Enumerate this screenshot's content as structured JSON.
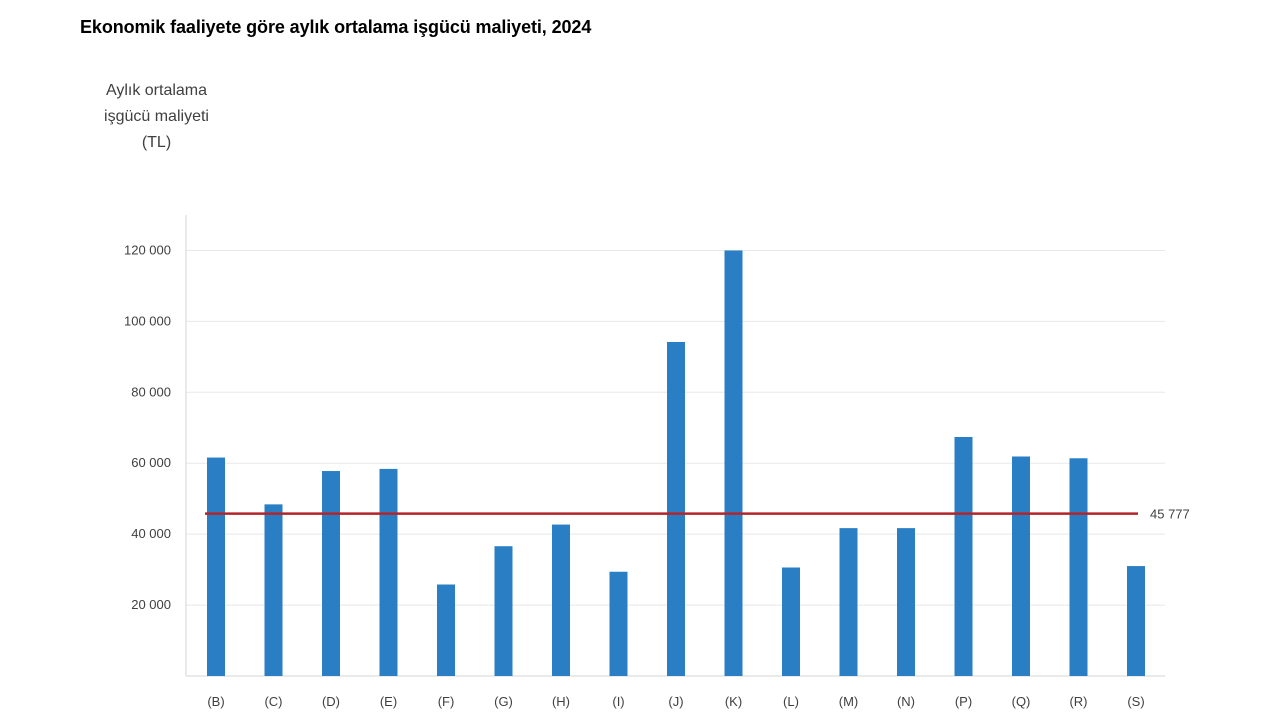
{
  "chart_data": {
    "type": "bar",
    "title": "Ekonomik faaliyete göre aylık ortalama işgücü maliyeti, 2024",
    "ylabel_lines": [
      "Aylık ortalama",
      "işgücü maliyeti",
      "(TL)"
    ],
    "xlabel": "",
    "categories": [
      "(B)",
      "(C)",
      "(D)",
      "(E)",
      "(F)",
      "(G)",
      "(H)",
      "(I)",
      "(J)",
      "(K)",
      "(L)",
      "(M)",
      "(N)",
      "(P)",
      "(Q)",
      "(R)",
      "(S)"
    ],
    "values": [
      61600,
      48400,
      57800,
      58400,
      25800,
      36600,
      42700,
      29400,
      94200,
      120000,
      30600,
      41700,
      41700,
      67400,
      61900,
      61400,
      31000
    ],
    "yticks": [
      20000,
      40000,
      60000,
      80000,
      100000,
      120000
    ],
    "ytick_labels": [
      "20 000",
      "40 000",
      "60 000",
      "80 000",
      "100 000",
      "120 000"
    ],
    "ylim": [
      0,
      130000
    ],
    "grid": true,
    "reference_line": {
      "value": 45777,
      "label": "45 777"
    },
    "colors": {
      "bar": "#2a7fc4",
      "reference_line": "#b3242a",
      "grid": "#e8e8e8",
      "axis": "#d4d4d4"
    }
  }
}
